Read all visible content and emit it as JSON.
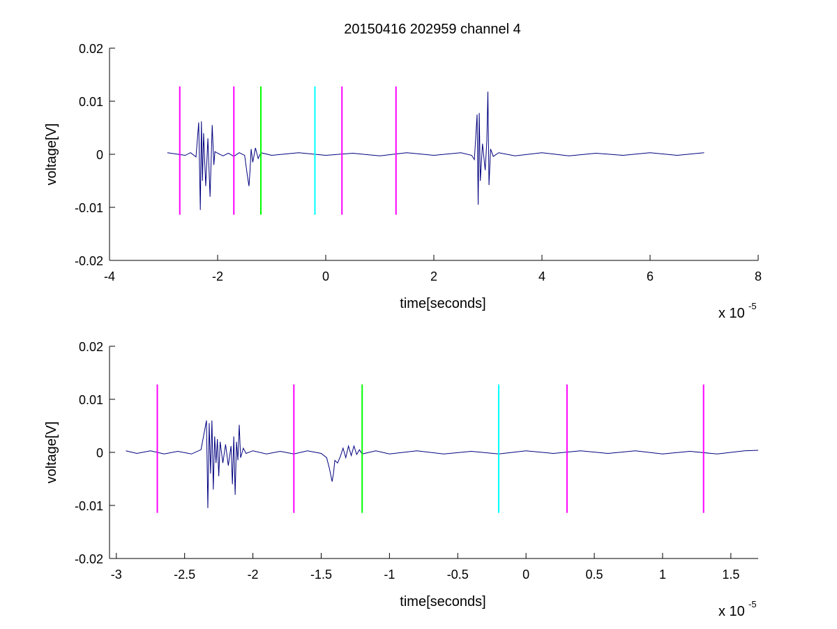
{
  "title": "20150416 202959 channel 4",
  "colors": {
    "signal": "#00007f",
    "marker_magenta": "#ff00ff",
    "marker_green": "#00ff00",
    "marker_cyan": "#00ffff",
    "axes": "#000000",
    "background": "#ffffff"
  },
  "chart_data": [
    {
      "type": "line",
      "title": "20150416 202959 channel 4",
      "xlabel": "time[seconds]",
      "ylabel": "voltage[V]",
      "x_multiplier_label": "x 10",
      "x_multiplier_exponent": "-5",
      "xlim": [
        -4,
        8
      ],
      "ylim": [
        -0.02,
        0.02
      ],
      "x_scale": 1e-05,
      "xticks": [
        -4,
        -2,
        0,
        2,
        4,
        6,
        8
      ],
      "xtick_labels": [
        "-4",
        "-2",
        "0",
        "2",
        "4",
        "6",
        "8"
      ],
      "yticks": [
        -0.02,
        -0.01,
        0,
        0.01,
        0.02
      ],
      "ytick_labels": [
        "-0.02",
        "-0.01",
        "0",
        "0.01",
        "0.02"
      ],
      "grid": false,
      "series": [
        {
          "color": "#00007f",
          "x": [
            -2.93,
            -2.6,
            -2.5,
            -2.4,
            -2.35,
            -2.32,
            -2.3,
            -2.28,
            -2.26,
            -2.22,
            -2.18,
            -2.14,
            -2.1,
            -2.07,
            -2.05,
            -2.0,
            -1.9,
            -1.8,
            -1.7,
            -1.6,
            -1.5,
            -1.45,
            -1.42,
            -1.4,
            -1.38,
            -1.35,
            -1.3,
            -1.25,
            -1.2,
            -1.0,
            -0.5,
            0.0,
            0.5,
            1.0,
            1.5,
            2.0,
            2.5,
            2.7,
            2.75,
            2.8,
            2.82,
            2.84,
            2.86,
            2.9,
            2.95,
            2.98,
            3.0,
            3.02,
            3.05,
            3.1,
            3.2,
            3.5,
            4.0,
            4.5,
            5.0,
            5.5,
            6.0,
            6.5,
            7.0
          ],
          "y": [
            0.0003,
            -0.0002,
            0.0003,
            -0.0005,
            0.006,
            -0.0105,
            0.0062,
            -0.005,
            0.004,
            -0.006,
            0.003,
            -0.008,
            0.0055,
            -0.002,
            0.0005,
            0.0002,
            -0.0003,
            0.0002,
            -0.0004,
            0.0003,
            -0.0002,
            -0.004,
            -0.006,
            -0.003,
            0.001,
            -0.0015,
            0.0012,
            -0.0008,
            0.0003,
            -0.0002,
            0.0003,
            -0.0002,
            0.0002,
            -0.0003,
            0.0003,
            -0.0002,
            0.0003,
            -0.0002,
            -0.001,
            0.0075,
            -0.0095,
            0.0078,
            -0.005,
            0.002,
            -0.003,
            0.0025,
            0.0118,
            -0.0058,
            0.001,
            -0.0004,
            0.0003,
            -0.0003,
            0.0003,
            -0.0003,
            0.0002,
            -0.0002,
            0.0003,
            -0.0002,
            0.0003
          ]
        }
      ],
      "markers": [
        {
          "x": -2.7,
          "color": "#ff00ff"
        },
        {
          "x": -1.7,
          "color": "#ff00ff"
        },
        {
          "x": -1.2,
          "color": "#00ff00"
        },
        {
          "x": -0.2,
          "color": "#00ffff"
        },
        {
          "x": 0.3,
          "color": "#ff00ff"
        },
        {
          "x": 1.3,
          "color": "#ff00ff"
        }
      ],
      "marker_range": [
        -0.0114,
        0.0128
      ]
    },
    {
      "type": "line",
      "xlabel": "time[seconds]",
      "ylabel": "voltage[V]",
      "x_multiplier_label": "x 10",
      "x_multiplier_exponent": "-5",
      "xlim": [
        -3.05,
        1.7
      ],
      "ylim": [
        -0.02,
        0.02
      ],
      "x_scale": 1e-05,
      "xticks": [
        -3,
        -2.5,
        -2,
        -1.5,
        -1,
        -0.5,
        0,
        0.5,
        1,
        1.5
      ],
      "xtick_labels": [
        "-3",
        "-2.5",
        "-2",
        "-1.5",
        "-1",
        "-0.5",
        "0",
        "0.5",
        "1",
        "1.5"
      ],
      "yticks": [
        -0.02,
        -0.01,
        0,
        0.01,
        0.02
      ],
      "ytick_labels": [
        "-0.02",
        "-0.01",
        "0",
        "0.01",
        "0.02"
      ],
      "grid": false,
      "series": [
        {
          "color": "#00007f",
          "x": [
            -2.93,
            -2.85,
            -2.75,
            -2.65,
            -2.55,
            -2.45,
            -2.38,
            -2.34,
            -2.33,
            -2.32,
            -2.31,
            -2.3,
            -2.29,
            -2.28,
            -2.27,
            -2.26,
            -2.25,
            -2.24,
            -2.22,
            -2.2,
            -2.18,
            -2.16,
            -2.15,
            -2.14,
            -2.13,
            -2.12,
            -2.11,
            -2.1,
            -2.09,
            -2.07,
            -2.05,
            -2.0,
            -1.9,
            -1.8,
            -1.7,
            -1.6,
            -1.5,
            -1.46,
            -1.44,
            -1.42,
            -1.41,
            -1.4,
            -1.38,
            -1.36,
            -1.34,
            -1.32,
            -1.3,
            -1.28,
            -1.26,
            -1.24,
            -1.22,
            -1.2,
            -1.1,
            -1.0,
            -0.8,
            -0.6,
            -0.4,
            -0.2,
            0.0,
            0.2,
            0.4,
            0.6,
            0.8,
            1.0,
            1.2,
            1.4,
            1.6,
            1.7
          ],
          "y": [
            0.0003,
            -0.0002,
            0.0003,
            -0.0003,
            0.0002,
            -0.0003,
            0.0005,
            0.006,
            -0.0105,
            0.0055,
            -0.004,
            0.006,
            -0.007,
            0.003,
            -0.002,
            0.0025,
            -0.0045,
            0.002,
            -0.002,
            0.0015,
            -0.0025,
            0.0012,
            -0.006,
            0.003,
            -0.008,
            0.002,
            -0.0015,
            0.0052,
            -0.001,
            0.0008,
            -0.0002,
            0.0003,
            -0.0003,
            0.0002,
            -0.0003,
            0.0003,
            -0.0002,
            -0.001,
            -0.003,
            -0.0055,
            -0.004,
            -0.0015,
            -0.002,
            -0.0008,
            0.0008,
            -0.001,
            0.0012,
            -0.0006,
            0.0012,
            -0.0004,
            0.0005,
            -0.0003,
            0.0003,
            -0.0003,
            0.0003,
            -0.0003,
            0.0002,
            -0.0003,
            0.0003,
            -0.0002,
            0.0003,
            -0.0002,
            0.0003,
            -0.0003,
            0.0002,
            -0.0003,
            0.0003,
            0.0004
          ]
        }
      ],
      "markers": [
        {
          "x": -2.7,
          "color": "#ff00ff"
        },
        {
          "x": -1.7,
          "color": "#ff00ff"
        },
        {
          "x": -1.2,
          "color": "#00ff00"
        },
        {
          "x": -0.2,
          "color": "#00ffff"
        },
        {
          "x": 0.3,
          "color": "#ff00ff"
        },
        {
          "x": 1.3,
          "color": "#ff00ff"
        }
      ],
      "marker_range": [
        -0.0114,
        0.0128
      ]
    }
  ]
}
